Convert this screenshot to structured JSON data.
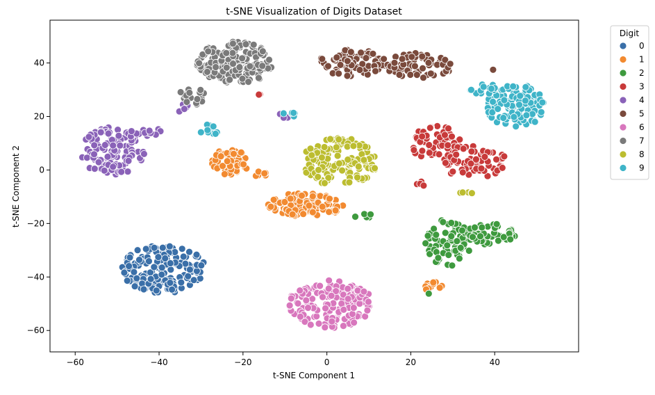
{
  "chart_data": {
    "type": "scatter",
    "title": "t-SNE Visualization of Digits Dataset",
    "xlabel": "t-SNE Component 1",
    "ylabel": "t-SNE Component 2",
    "xlim": [
      -66,
      60
    ],
    "ylim": [
      -68,
      56
    ],
    "xticks": [
      -60,
      -40,
      -20,
      0,
      20,
      40
    ],
    "yticks": [
      40,
      20,
      0,
      -20,
      -40,
      -60
    ],
    "grid": false,
    "legend": {
      "title": "Digit",
      "placement": "outside-right"
    },
    "series": [
      {
        "name": "0",
        "color": "#3a6fa8",
        "clusters": [
          {
            "cx": -39,
            "cy": -37,
            "rx": 10,
            "ry": 9,
            "n": 180
          }
        ]
      },
      {
        "name": "1",
        "color": "#f28a30",
        "clusters": [
          {
            "cx": -23,
            "cy": 3,
            "rx": 4.5,
            "ry": 5,
            "n": 60
          },
          {
            "cx": -5,
            "cy": -13,
            "rx": 9,
            "ry": 4.5,
            "n": 110
          },
          {
            "cx": -16,
            "cy": -2,
            "rx": 2,
            "ry": 1.5,
            "n": 6
          },
          {
            "cx": 26,
            "cy": -43.5,
            "rx": 3,
            "ry": 2,
            "n": 12
          }
        ]
      },
      {
        "name": "2",
        "color": "#3e9a3e",
        "clusters": [
          {
            "cx": 29,
            "cy": -27,
            "rx": 6,
            "ry": 9,
            "n": 75
          },
          {
            "cx": 39,
            "cy": -24,
            "rx": 6,
            "ry": 4,
            "n": 60
          },
          {
            "cx": 9,
            "cy": -17,
            "rx": 3,
            "ry": 1,
            "n": 5
          },
          {
            "cx": 24,
            "cy": -46,
            "rx": 0.5,
            "ry": 0.5,
            "n": 1
          }
        ]
      },
      {
        "name": "3",
        "color": "#c83a3a",
        "clusters": [
          {
            "cx": 26,
            "cy": 10,
            "rx": 6,
            "ry": 7,
            "n": 60
          },
          {
            "cx": 35,
            "cy": 3,
            "rx": 8,
            "ry": 6,
            "n": 70
          },
          {
            "cx": 22,
            "cy": -5,
            "rx": 2,
            "ry": 1,
            "n": 4
          },
          {
            "cx": -16,
            "cy": 27.5,
            "rx": 0.8,
            "ry": 0.8,
            "n": 2
          }
        ]
      },
      {
        "name": "4",
        "color": "#8a62b8",
        "clusters": [
          {
            "cx": -51,
            "cy": 7,
            "rx": 8,
            "ry": 9,
            "n": 130
          },
          {
            "cx": -43,
            "cy": 14,
            "rx": 4,
            "ry": 2,
            "n": 12
          },
          {
            "cx": -34,
            "cy": 23,
            "rx": 2,
            "ry": 1.5,
            "n": 6
          },
          {
            "cx": -10,
            "cy": 20.5,
            "rx": 1.5,
            "ry": 1,
            "n": 3
          }
        ]
      },
      {
        "name": "5",
        "color": "#7a4a3c",
        "clusters": [
          {
            "cx": 6,
            "cy": 40,
            "rx": 8,
            "ry": 5,
            "n": 80
          },
          {
            "cx": 22,
            "cy": 39,
            "rx": 8,
            "ry": 5,
            "n": 70
          },
          {
            "cx": 40,
            "cy": 37.5,
            "rx": 0.6,
            "ry": 0.6,
            "n": 1
          }
        ]
      },
      {
        "name": "6",
        "color": "#d877bd",
        "clusters": [
          {
            "cx": 1,
            "cy": -50,
            "rx": 10,
            "ry": 9,
            "n": 160
          }
        ]
      },
      {
        "name": "7",
        "color": "#7a7a7a",
        "clusters": [
          {
            "cx": -22,
            "cy": 40,
            "rx": 9,
            "ry": 8,
            "n": 150
          },
          {
            "cx": -32,
            "cy": 28,
            "rx": 3,
            "ry": 4,
            "n": 20
          }
        ]
      },
      {
        "name": "8",
        "color": "#bcbd30",
        "clusters": [
          {
            "cx": 3,
            "cy": 3,
            "rx": 9,
            "ry": 9,
            "n": 150
          },
          {
            "cx": 33,
            "cy": -9,
            "rx": 2,
            "ry": 1,
            "n": 5
          }
        ]
      },
      {
        "name": "9",
        "color": "#3fb4c8",
        "clusters": [
          {
            "cx": 45,
            "cy": 24,
            "rx": 7,
            "ry": 8,
            "n": 110
          },
          {
            "cx": 38,
            "cy": 30,
            "rx": 4,
            "ry": 2,
            "n": 15
          },
          {
            "cx": -28,
            "cy": 15,
            "rx": 2.5,
            "ry": 2,
            "n": 10
          },
          {
            "cx": -9,
            "cy": 20.5,
            "rx": 2,
            "ry": 1,
            "n": 7
          }
        ]
      }
    ]
  }
}
